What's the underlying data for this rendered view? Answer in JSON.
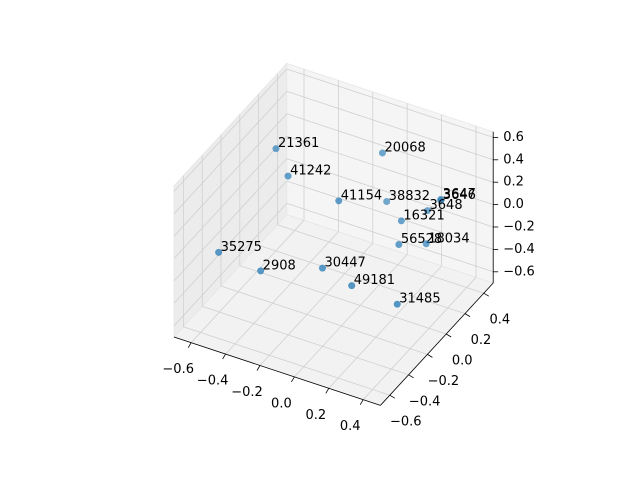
{
  "chart_data": {
    "type": "scatter3d",
    "labels": [
      "21361",
      "20068",
      "41242",
      "41154",
      "38832",
      "3646",
      "3647",
      "3648",
      "16321",
      "56528",
      "18034",
      "35275",
      "2908",
      "30447",
      "49181",
      "31485"
    ],
    "x": [
      -0.435,
      0.02,
      -0.31,
      -0.07,
      -0.01,
      0.25,
      0.25,
      0.2,
      0.13,
      0.17,
      0.22,
      -0.55,
      -0.36,
      -0.11,
      0.06,
      0.27
    ],
    "y": [
      -0.1,
      0.2,
      -0.2,
      -0.1,
      0.3,
      0.4,
      0.4,
      0.35,
      0.2,
      0.1,
      0.3,
      -0.5,
      -0.4,
      -0.2,
      -0.2,
      -0.1
    ],
    "z": [
      0.57,
      0.49,
      0.48,
      0.29,
      -0.05,
      0.0,
      0.01,
      -0.07,
      -0.06,
      -0.16,
      -0.31,
      -0.05,
      -0.21,
      -0.24,
      -0.31,
      -0.46
    ],
    "color": "#1f77b4",
    "xlim": [
      -0.7,
      0.5
    ],
    "ylim": [
      -0.7,
      0.5
    ],
    "zlim": [
      -0.7,
      0.65
    ],
    "xticks": [
      {
        "value": -0.6,
        "label": "−0.6"
      },
      {
        "value": -0.4,
        "label": "−0.4"
      },
      {
        "value": -0.2,
        "label": "−0.2"
      },
      {
        "value": 0,
        "label": "0.0"
      },
      0.2,
      0.4
    ],
    "yticks": [
      {
        "value": -0.6,
        "label": "−0.6"
      },
      {
        "value": -0.4,
        "label": "−0.4"
      },
      {
        "value": -0.2,
        "label": "−0.2"
      },
      {
        "value": 0,
        "label": "0.0"
      },
      0.2,
      0.4
    ],
    "zticks": [
      {
        "value": -0.6,
        "label": "−0.6"
      },
      {
        "value": -0.4,
        "label": "−0.4"
      },
      {
        "value": -0.2,
        "label": "−0.2"
      },
      {
        "value": 0,
        "label": "0.0"
      },
      0.2,
      0.4,
      0.6
    ],
    "grid": true
  }
}
